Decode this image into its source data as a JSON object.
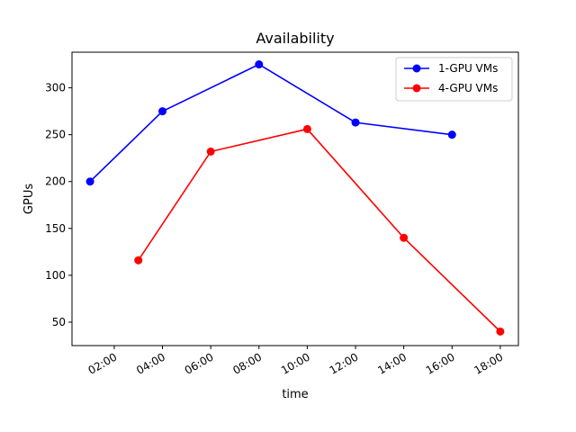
{
  "chart_data": {
    "type": "line",
    "title": "Availability",
    "xlabel": "time",
    "ylabel": "GPUs",
    "x_ticks": [
      "02:00",
      "04:00",
      "06:00",
      "08:00",
      "10:00",
      "12:00",
      "14:00",
      "16:00",
      "18:00"
    ],
    "y_ticks": [
      50,
      100,
      150,
      200,
      250,
      300
    ],
    "xlim": [
      "00:15",
      "18:45"
    ],
    "ylim": [
      25,
      338
    ],
    "grid": false,
    "legend_position": "top-right",
    "series": [
      {
        "name": "1-GPU VMs",
        "color": "#0000ff",
        "marker": "circle",
        "x": [
          "01:00",
          "04:00",
          "08:00",
          "12:00",
          "16:00"
        ],
        "y": [
          200,
          275,
          325,
          263,
          250
        ]
      },
      {
        "name": "4-GPU VMs",
        "color": "#ff0000",
        "marker": "circle",
        "x": [
          "03:00",
          "06:00",
          "10:00",
          "14:00",
          "18:00"
        ],
        "y": [
          116,
          232,
          256,
          140,
          40
        ]
      }
    ]
  }
}
